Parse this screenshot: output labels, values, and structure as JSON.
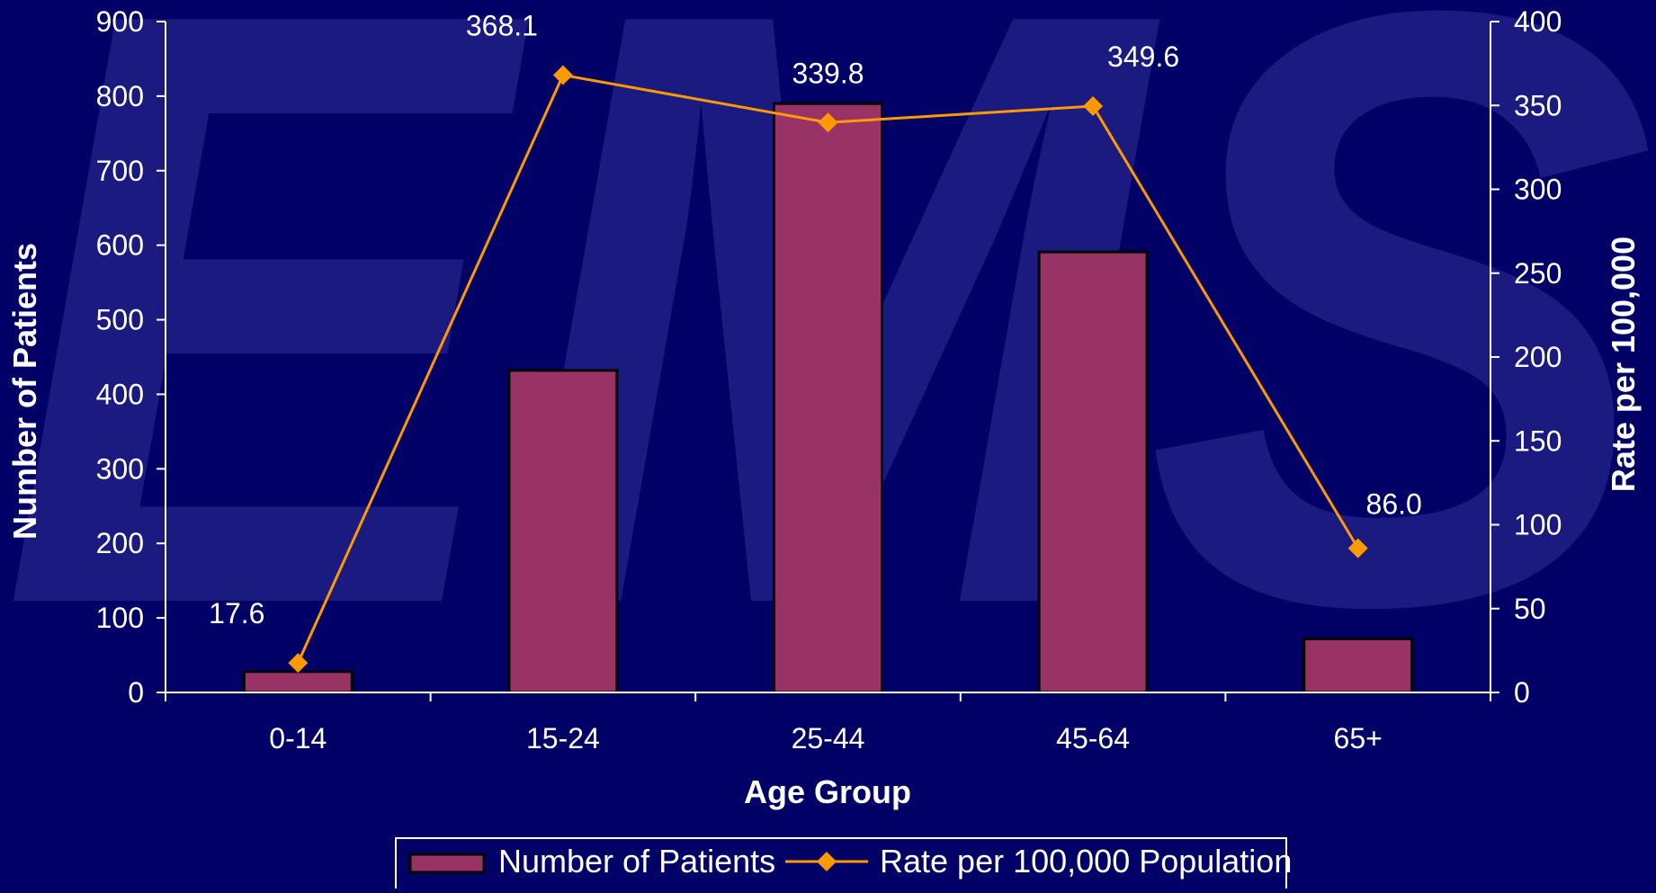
{
  "chart_data": {
    "type": "bar",
    "categories": [
      "0-14",
      "15-24",
      "25-44",
      "45-64",
      "65+"
    ],
    "series": [
      {
        "name": "Number of Patients",
        "kind": "bar",
        "axis": "left",
        "color": "#993366",
        "values": [
          28,
          432,
          790,
          591,
          72
        ]
      },
      {
        "name": "Rate per 100,000 Population",
        "kind": "line",
        "axis": "right",
        "color": "#FF9900",
        "values": [
          17.6,
          368.1,
          339.8,
          349.6,
          86.0
        ],
        "labels": [
          "17.6",
          "368.1",
          "339.8",
          "349.6",
          "86.0"
        ]
      }
    ],
    "xlabel": "Age Group",
    "ylabel": "Number of Patients",
    "y2label": "Rate per 100,000",
    "ylim": [
      0,
      900
    ],
    "y2lim": [
      0,
      400
    ],
    "yticks": [
      "0",
      "100",
      "200",
      "300",
      "400",
      "500",
      "600",
      "700",
      "800",
      "900"
    ],
    "y2ticks": [
      "0",
      "50",
      "100",
      "150",
      "200",
      "250",
      "300",
      "350",
      "400"
    ],
    "grid": false,
    "legend_position": "bottom"
  },
  "watermark": "EMS",
  "colors": {
    "background": "#000066",
    "watermark": "#1a1a80",
    "axis": "#ffffff",
    "bar_outline": "#000000"
  }
}
